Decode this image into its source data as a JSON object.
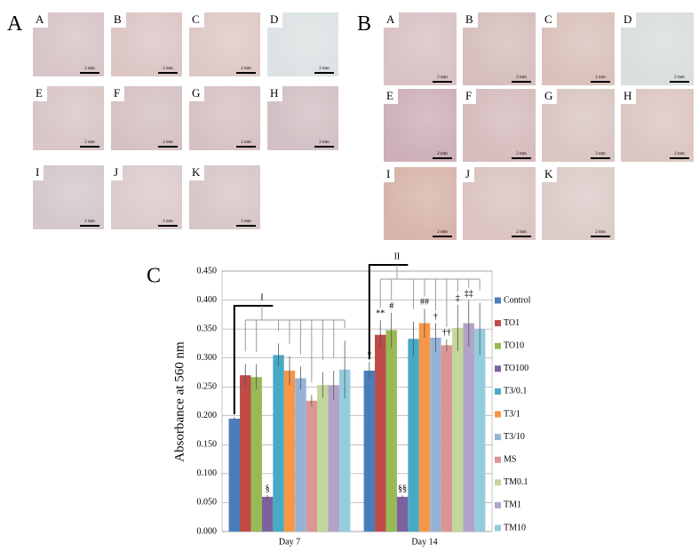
{
  "panels": [
    {
      "label": "A",
      "images": [
        {
          "label": "A",
          "scale": "2 mm",
          "color": "#d8c5c8"
        },
        {
          "label": "B",
          "scale": "2 mm",
          "color": "#dcc6c6"
        },
        {
          "label": "C",
          "scale": "2 mm",
          "color": "#dec9c6"
        },
        {
          "label": "D",
          "scale": "2 mm",
          "color": "#dde3e4"
        },
        {
          "label": "E",
          "scale": "2 mm",
          "color": "#d9c6c6"
        },
        {
          "label": "F",
          "scale": "2 mm",
          "color": "#d6c2c3"
        },
        {
          "label": "G",
          "scale": "2 mm",
          "color": "#d8c1c3"
        },
        {
          "label": "H",
          "scale": "2 mm",
          "color": "#d2c1c4"
        },
        {
          "label": "I",
          "scale": "2 mm",
          "color": "#d5c8cd"
        },
        {
          "label": "J",
          "scale": "2 mm",
          "color": "#dccbcc"
        },
        {
          "label": "K",
          "scale": "2 mm",
          "color": "#d7c8c7"
        }
      ]
    },
    {
      "label": "B",
      "images": [
        {
          "label": "A",
          "scale": "2 mm",
          "color": "#d8c2c4"
        },
        {
          "label": "B",
          "scale": "2 mm",
          "color": "#d6bfbd"
        },
        {
          "label": "C",
          "scale": "2 mm",
          "color": "#dac2bb"
        },
        {
          "label": "D",
          "scale": "2 mm",
          "color": "#d9dfde"
        },
        {
          "label": "E",
          "scale": "2 mm",
          "color": "#cdb0b8"
        },
        {
          "label": "F",
          "scale": "2 mm",
          "color": "#d6bcbd"
        },
        {
          "label": "G",
          "scale": "2 mm",
          "color": "#dac6c1"
        },
        {
          "label": "H",
          "scale": "2 mm",
          "color": "#dcc6c3"
        },
        {
          "label": "I",
          "scale": "2 mm",
          "color": "#d7b5ab"
        },
        {
          "label": "J",
          "scale": "2 mm",
          "color": "#dbc4c1"
        },
        {
          "label": "K",
          "scale": "2 mm",
          "color": "#dcccc9"
        }
      ]
    }
  ],
  "chart_data": {
    "type": "bar",
    "panel_label": "C",
    "y_label": "Absorbance at 560 nm",
    "categories": [
      "Day 7",
      "Day 14"
    ],
    "ylim": [
      0,
      0.45
    ],
    "yticks": [
      {
        "value": 0,
        "label": "0.000"
      },
      {
        "value": 0.05,
        "label": "0.050"
      },
      {
        "value": 0.1,
        "label": "0.100"
      },
      {
        "value": 0.15,
        "label": "0.150"
      },
      {
        "value": 0.2,
        "label": "0.200"
      },
      {
        "value": 0.25,
        "label": "0.250"
      },
      {
        "value": 0.3,
        "label": "0.300"
      },
      {
        "value": 0.35,
        "label": "0.350"
      },
      {
        "value": 0.4,
        "label": "0.400"
      },
      {
        "value": 0.45,
        "label": "0.450"
      }
    ],
    "grid": true,
    "bracket_labels": [
      "I",
      "II"
    ],
    "series": [
      {
        "name": "Control",
        "color": "#4a7ebb",
        "values": [
          0.195,
          0.278
        ],
        "errors": [
          0.003,
          0.015
        ],
        "markers": [
          null,
          "*"
        ]
      },
      {
        "name": "TO1",
        "color": "#be4b48",
        "values": [
          0.27,
          0.34
        ],
        "errors": [
          0.02,
          0.025
        ],
        "markers": [
          null,
          "**"
        ]
      },
      {
        "name": "TO10",
        "color": "#98b954",
        "values": [
          0.267,
          0.348
        ],
        "errors": [
          0.022,
          0.03
        ],
        "markers": [
          null,
          "#"
        ]
      },
      {
        "name": "TO100",
        "color": "#7d60a0",
        "values": [
          0.06,
          0.06
        ],
        "errors": [
          0.003,
          0.003
        ],
        "markers": [
          "§",
          "§§"
        ]
      },
      {
        "name": "T3/0.1",
        "color": "#46aac5",
        "values": [
          0.305,
          0.333
        ],
        "errors": [
          0.02,
          0.03
        ],
        "markers": [
          null,
          null
        ]
      },
      {
        "name": "T3/1",
        "color": "#f79646",
        "values": [
          0.278,
          0.36
        ],
        "errors": [
          0.025,
          0.025
        ],
        "markers": [
          null,
          "##"
        ]
      },
      {
        "name": "T3/10",
        "color": "#95b3d7",
        "values": [
          0.265,
          0.335
        ],
        "errors": [
          0.02,
          0.025
        ],
        "markers": [
          null,
          "†"
        ]
      },
      {
        "name": "MS",
        "color": "#d99694",
        "values": [
          0.226,
          0.322
        ],
        "errors": [
          0.01,
          0.01
        ],
        "markers": [
          null,
          "††"
        ]
      },
      {
        "name": "TM0.1",
        "color": "#c3d69b",
        "values": [
          0.253,
          0.352
        ],
        "errors": [
          0.022,
          0.04
        ],
        "markers": [
          null,
          "‡"
        ]
      },
      {
        "name": "TM1",
        "color": "#b3a2c7",
        "values": [
          0.253,
          0.36
        ],
        "errors": [
          0.025,
          0.04
        ],
        "markers": [
          null,
          "‡‡"
        ]
      },
      {
        "name": "TM10",
        "color": "#93cddd",
        "values": [
          0.28,
          0.35
        ],
        "errors": [
          0.05,
          0.045
        ],
        "markers": [
          null,
          null
        ]
      }
    ]
  }
}
